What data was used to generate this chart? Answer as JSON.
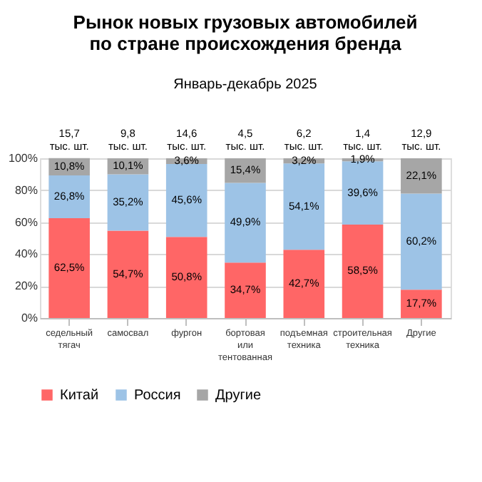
{
  "chart_data": {
    "type": "bar",
    "stacked": true,
    "title": "Рынок новых грузовых автомобилей\nпо стране происхождения бренда",
    "subtitle": "Январь-декабрь 2025",
    "categories": [
      "седельный\nтягач",
      "самосвал",
      "фургон",
      "бортовая\nили\nтентованная",
      "подъемная\nтехника",
      "строительная\nтехника",
      "Другие"
    ],
    "series": [
      {
        "name": "Китай",
        "color": "#ff6666",
        "values": [
          62.5,
          54.7,
          50.8,
          34.7,
          42.7,
          58.5,
          17.7
        ],
        "value_labels": [
          "62,5%",
          "54,7%",
          "50,8%",
          "34,7%",
          "42,7%",
          "58,5%",
          "17,7%"
        ]
      },
      {
        "name": "Россия",
        "color": "#9dc3e6",
        "values": [
          26.8,
          35.2,
          45.6,
          49.9,
          54.1,
          39.6,
          60.2
        ],
        "value_labels": [
          "26,8%",
          "35,2%",
          "45,6%",
          "49,9%",
          "54,1%",
          "39,6%",
          "60,2%"
        ]
      },
      {
        "name": "Другие",
        "color": "#a6a6a6",
        "values": [
          10.8,
          10.1,
          3.6,
          15.4,
          3.2,
          1.9,
          22.1
        ],
        "value_labels": [
          "10,8%",
          "10,1%",
          "3,6%",
          "15,4%",
          "3,2%",
          "1,9%",
          "22,1%"
        ]
      }
    ],
    "annotations": [
      "15,7\nтыс. шт.",
      "9,8\nтыс. шт.",
      "14,6\nтыс. шт.",
      "4,5\nтыс. шт.",
      "6,2\nтыс. шт.",
      "1,4\nтыс. шт.",
      "12,9\nтыс. шт."
    ],
    "ylim": [
      0,
      100
    ],
    "yticks": [
      {
        "value": 0,
        "label": "0%"
      },
      {
        "value": 20,
        "label": "20%"
      },
      {
        "value": 40,
        "label": "40%"
      },
      {
        "value": 60,
        "label": "60%"
      },
      {
        "value": 80,
        "label": "80%"
      },
      {
        "value": 100,
        "label": "100%"
      }
    ],
    "grid": "y",
    "legend": "bottom"
  }
}
